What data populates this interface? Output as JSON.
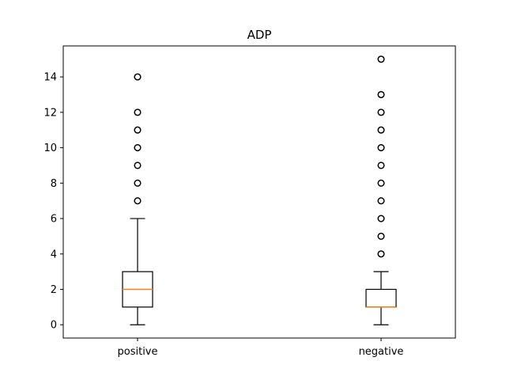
{
  "chart_data": {
    "type": "boxplot",
    "title": "ADP",
    "xlabel": "",
    "ylabel": "",
    "categories": [
      "positive",
      "negative"
    ],
    "ylim": [
      -0.75,
      15.75
    ],
    "yticks": [
      0,
      2,
      4,
      6,
      8,
      10,
      12,
      14
    ],
    "grid": false,
    "boxes": [
      {
        "name": "positive",
        "whisker_low": 0,
        "q1": 1,
        "median": 2,
        "q3": 3,
        "whisker_high": 6,
        "fliers": [
          7,
          8,
          9,
          10,
          11,
          12,
          14
        ]
      },
      {
        "name": "negative",
        "whisker_low": 0,
        "q1": 1,
        "median": 1,
        "q3": 2,
        "whisker_high": 3,
        "fliers": [
          4,
          5,
          6,
          7,
          8,
          9,
          10,
          11,
          12,
          13,
          15
        ]
      }
    ],
    "colors": {
      "median": "#ff7f0e",
      "box": "#000000"
    }
  }
}
